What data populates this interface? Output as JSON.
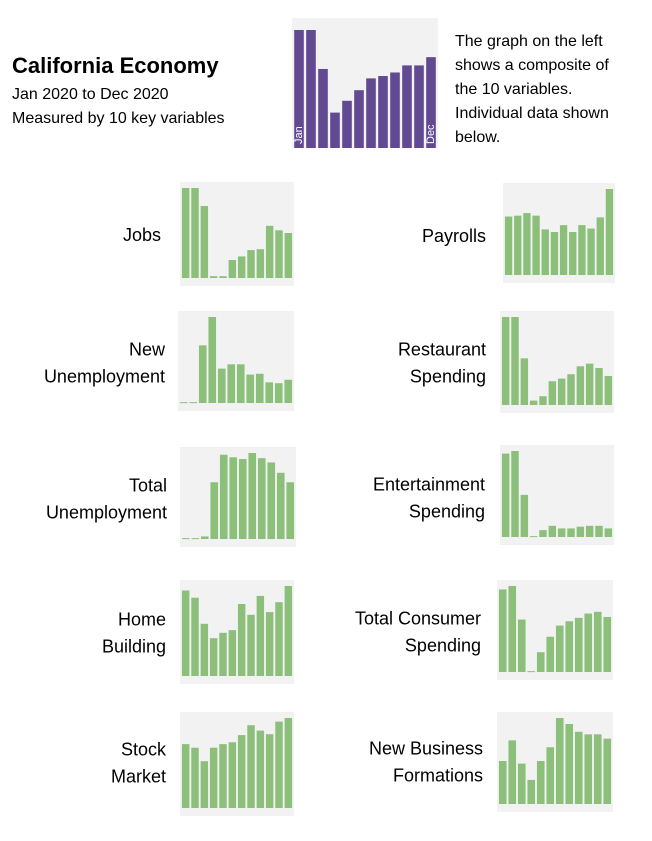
{
  "header": {
    "title": "California Economy",
    "subtitle": [
      "Jan 2020 to Dec 2020",
      "Measured by 10 key variables"
    ],
    "description": [
      "The graph on the left",
      "shows a composite of",
      "the 10 variables.",
      "Individual data shown",
      "below."
    ]
  },
  "chart_data": [
    {
      "type": "bar",
      "color": "#624a92",
      "ylim": [
        0,
        100
      ],
      "categories": [
        "Jan",
        null,
        null,
        null,
        null,
        null,
        null,
        null,
        null,
        null,
        null,
        "Dec"
      ],
      "values": [
        100,
        100,
        67,
        30,
        40,
        49,
        59,
        61,
        64,
        70,
        70,
        77
      ]
    },
    {
      "type": "bar",
      "title": [
        "Jobs"
      ],
      "color": "#8cc07a",
      "ylim": [
        0,
        100
      ],
      "values": [
        100,
        100,
        80,
        2,
        2,
        20,
        24,
        31,
        32,
        58,
        53,
        50
      ]
    },
    {
      "type": "bar",
      "title": [
        "Payrolls"
      ],
      "color": "#8cc07a",
      "ylim": [
        0,
        100
      ],
      "values": [
        68,
        69,
        72,
        69,
        53,
        50,
        58,
        50,
        58,
        54,
        67,
        100
      ]
    },
    {
      "type": "bar",
      "title": [
        "New",
        "Unemployment"
      ],
      "color": "#8cc07a",
      "ylim": [
        0,
        100
      ],
      "values": [
        1,
        1,
        67,
        100,
        40,
        45,
        45,
        33,
        34,
        24,
        23,
        27
      ]
    },
    {
      "type": "bar",
      "title": [
        "Restaurant",
        "Spending"
      ],
      "color": "#8cc07a",
      "ylim": [
        0,
        100
      ],
      "values": [
        100,
        100,
        53,
        5,
        10,
        27,
        30,
        35,
        44,
        47,
        42,
        33
      ]
    },
    {
      "type": "bar",
      "title": [
        "Total",
        "Unemployment"
      ],
      "color": "#8cc07a",
      "ylim": [
        0,
        100
      ],
      "values": [
        1,
        1,
        3,
        66,
        98,
        95,
        93,
        100,
        94,
        89,
        77,
        66
      ]
    },
    {
      "type": "bar",
      "title": [
        "Entertainment",
        "Spending"
      ],
      "color": "#8cc07a",
      "ylim": [
        0,
        100
      ],
      "values": [
        97,
        100,
        49,
        1,
        8,
        13,
        10,
        10,
        12,
        13,
        13,
        10
      ]
    },
    {
      "type": "bar",
      "title": [
        "Home",
        "Building"
      ],
      "color": "#8cc07a",
      "ylim": [
        0,
        100
      ],
      "values": [
        95,
        87,
        58,
        42,
        48,
        51,
        80,
        68,
        89,
        71,
        82,
        100
      ]
    },
    {
      "type": "bar",
      "title": [
        "Total Consumer",
        "Spending"
      ],
      "color": "#8cc07a",
      "ylim": [
        0,
        100
      ],
      "values": [
        96,
        100,
        61,
        1,
        23,
        41,
        54,
        59,
        63,
        68,
        70,
        64
      ]
    },
    {
      "type": "bar",
      "title": [
        "Stock",
        "Market"
      ],
      "color": "#8cc07a",
      "ylim": [
        0,
        100
      ],
      "values": [
        71,
        67,
        52,
        67,
        71,
        73,
        81,
        92,
        86,
        82,
        96,
        100
      ]
    },
    {
      "type": "bar",
      "title": [
        "New Business",
        "Formations"
      ],
      "color": "#8cc07a",
      "ylim": [
        0,
        100
      ],
      "values": [
        50,
        74,
        47,
        28,
        50,
        66,
        100,
        93,
        84,
        81,
        81,
        76
      ]
    }
  ]
}
